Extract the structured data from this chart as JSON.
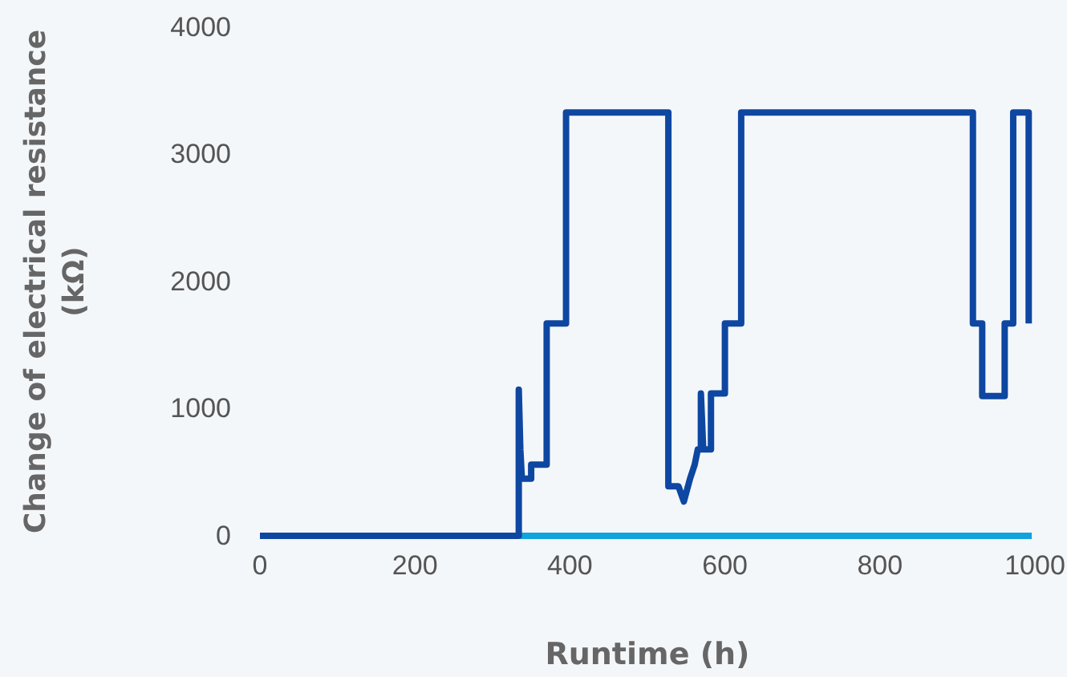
{
  "chart_data": {
    "type": "line",
    "xlabel": "Runtime (h)",
    "ylabel": "Change of electrical resistance (kΩ)",
    "xlim": [
      0,
      1000
    ],
    "ylim": [
      0,
      4000
    ],
    "xticks": [
      0,
      200,
      400,
      600,
      800,
      1000
    ],
    "yticks": [
      0,
      1000,
      2000,
      3000,
      4000
    ],
    "grid": false,
    "marker": "none",
    "line_style": "solid",
    "series": [
      {
        "color": "#0e47a1",
        "x": [
          0,
          334,
          334,
          336,
          338,
          350,
          350,
          370,
          370,
          395,
          395,
          527,
          527,
          540,
          547,
          555,
          561,
          565,
          569,
          569,
          572,
          582,
          582,
          600,
          600,
          621,
          621,
          920,
          920,
          932,
          932,
          961,
          961,
          972,
          972,
          992,
          992
        ],
        "values": [
          0,
          0,
          1150,
          680,
          450,
          450,
          560,
          560,
          1670,
          1670,
          3330,
          3330,
          390,
          390,
          270,
          450,
          560,
          680,
          680,
          1120,
          680,
          680,
          1120,
          1120,
          1670,
          1670,
          3330,
          3330,
          1670,
          1670,
          1100,
          1100,
          1670,
          1670,
          3330,
          3330,
          1670
        ]
      },
      {
        "color": "#12a3dd",
        "x": [
          336,
          996
        ],
        "values": [
          0,
          0
        ]
      }
    ]
  }
}
